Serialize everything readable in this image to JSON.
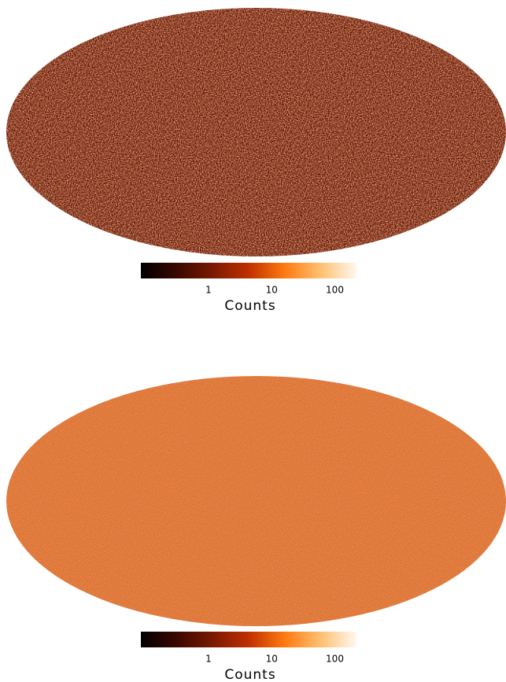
{
  "chart_data": [
    {
      "type": "map",
      "colorbar": {
        "label": "Counts",
        "log": true,
        "lim": [
          0.085,
          220
        ],
        "ticks": [
          1,
          10,
          100
        ]
      },
      "colormap": [
        "#000000",
        "#3a0800",
        "#7a1a00",
        "#c03000",
        "#ff7a10",
        "#ffc070",
        "#fff8f0"
      ]
    },
    {
      "type": "map",
      "colorbar": {
        "label": "Counts",
        "log": true,
        "lim": [
          0.085,
          220
        ],
        "ticks": [
          1,
          10,
          100
        ]
      },
      "colormap": [
        "#000000",
        "#3a0800",
        "#7a1a00",
        "#c03000",
        "#ff7a10",
        "#ffc070",
        "#fff8f0"
      ]
    }
  ]
}
